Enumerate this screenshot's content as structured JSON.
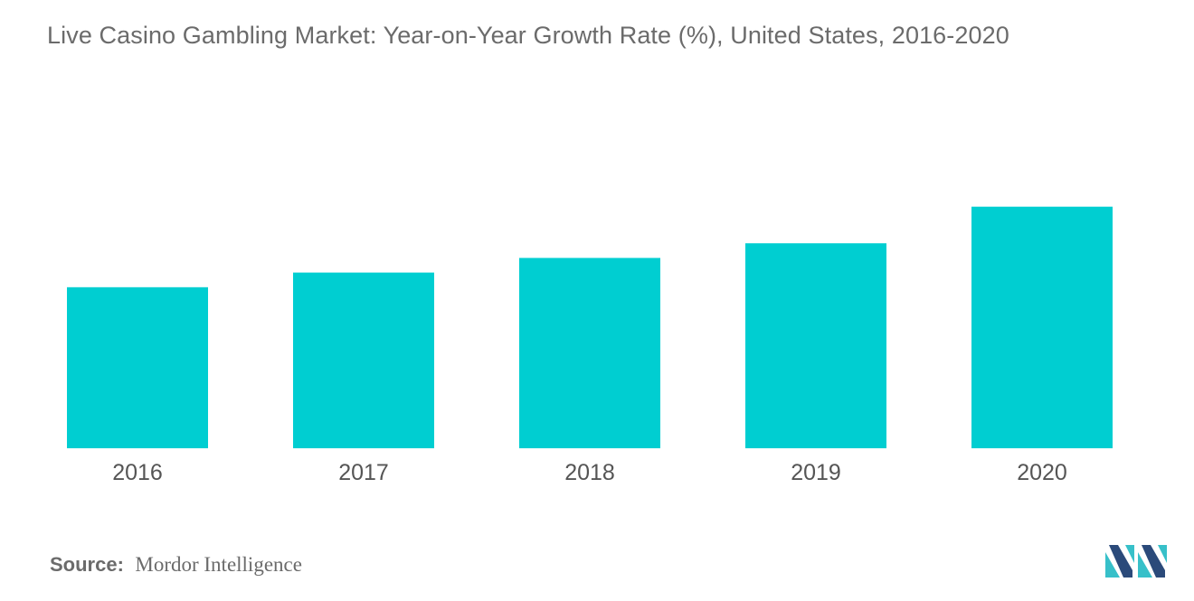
{
  "chart_data": {
    "type": "bar",
    "title": "Live Casino Gambling Market: Year-on-Year Growth Rate (%), United States, 2016-2020",
    "categories": [
      "2016",
      "2017",
      "2018",
      "2019",
      "2020"
    ],
    "values": [
      4.4,
      4.8,
      5.2,
      5.6,
      6.6
    ],
    "xlabel": "",
    "ylabel": "",
    "ylim": [
      0,
      10
    ],
    "grid": false,
    "legend": "none",
    "bar_color": "#00ced1"
  },
  "source": {
    "label": "Source:",
    "value": "Mordor Intelligence"
  },
  "colors": {
    "title": "#6b6b6b",
    "logo_dark": "#2b4a7a",
    "logo_teal": "#37c0c9"
  },
  "logo": {
    "icon": "mordor-intelligence-logo"
  }
}
